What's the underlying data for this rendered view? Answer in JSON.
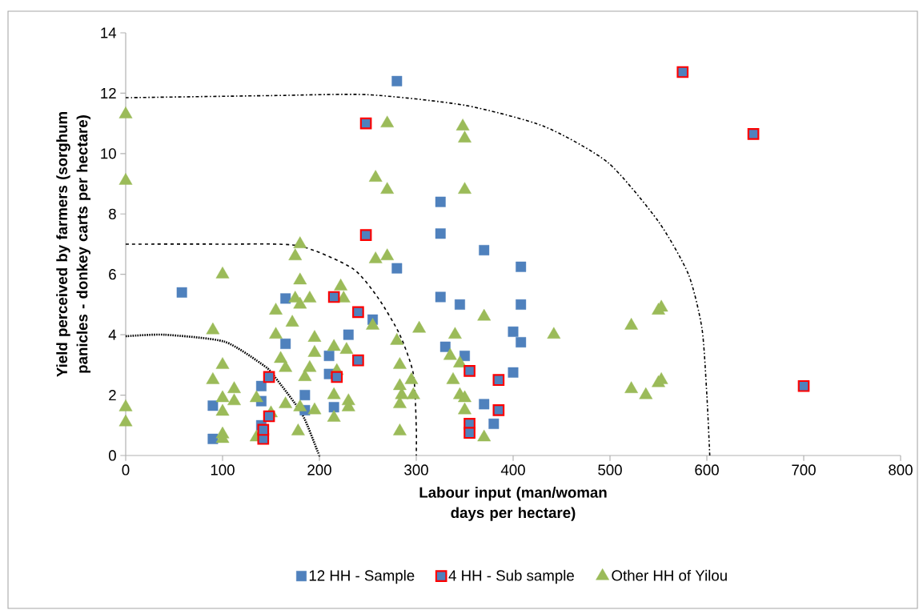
{
  "chart_data": {
    "type": "scatter",
    "xlabel": "Labour input (man/woman days per hectare)",
    "ylabel": "Yield perceived by farmers (sorghum panicles - donkey carts per hectare)",
    "xlim": [
      0,
      800
    ],
    "xticks": [
      0,
      100,
      200,
      300,
      400,
      500,
      600,
      700,
      800
    ],
    "ylim": [
      0,
      14
    ],
    "yticks": [
      0,
      2,
      4,
      6,
      8,
      10,
      12,
      14
    ],
    "grid": false,
    "legend": "bottom",
    "series": [
      {
        "name": "12 HH - Sample",
        "color": "#4f81bd",
        "marker": "square",
        "x": [
          58,
          90,
          90,
          140,
          140,
          140,
          165,
          165,
          185,
          185,
          210,
          210,
          215,
          230,
          255,
          280,
          280,
          325,
          325,
          325,
          330,
          345,
          350,
          370,
          370,
          380,
          400,
          400,
          408,
          408,
          408
        ],
        "values": [
          5.4,
          1.65,
          0.55,
          2.3,
          1.0,
          1.8,
          5.2,
          3.7,
          2.0,
          1.5,
          3.3,
          2.7,
          1.6,
          4.0,
          4.5,
          12.4,
          6.2,
          8.4,
          7.35,
          5.25,
          3.6,
          5.0,
          3.3,
          6.8,
          1.7,
          1.05,
          4.1,
          2.75,
          6.25,
          5.0,
          3.75
        ]
      },
      {
        "name": "4 HH - Sub sample",
        "color": "#ff0000",
        "marker": "square",
        "x": [
          248,
          248,
          215,
          240,
          240,
          218,
          148,
          148,
          142,
          142,
          355,
          355,
          355,
          385,
          385,
          575,
          648,
          700
        ],
        "values": [
          11.0,
          7.3,
          5.25,
          4.75,
          3.15,
          2.6,
          2.6,
          1.3,
          0.55,
          0.85,
          2.8,
          1.05,
          0.75,
          2.5,
          1.5,
          12.7,
          10.65,
          2.3
        ]
      },
      {
        "name": "Other HH of Yilou",
        "color": "#9bbb59",
        "marker": "triangle",
        "x": [
          0,
          0,
          0,
          0,
          100,
          90,
          90,
          100,
          100,
          100,
          100,
          100,
          112,
          112,
          135,
          135,
          150,
          155,
          155,
          160,
          165,
          165,
          175,
          180,
          180,
          175,
          180,
          172,
          180,
          178,
          185,
          190,
          195,
          195,
          190,
          195,
          215,
          218,
          215,
          215,
          222,
          225,
          228,
          230,
          230,
          255,
          258,
          258,
          270,
          270,
          270,
          280,
          283,
          283,
          285,
          283,
          283,
          295,
          297,
          303,
          335,
          340,
          338,
          345,
          345,
          350,
          350,
          348,
          350,
          350,
          370,
          370,
          442,
          522,
          522,
          537,
          550,
          553,
          550,
          553
        ],
        "values": [
          11.3,
          9.1,
          1.6,
          1.1,
          6.0,
          4.15,
          2.5,
          3.0,
          1.9,
          1.45,
          0.7,
          0.55,
          2.2,
          1.8,
          1.9,
          0.6,
          1.4,
          4.8,
          4.0,
          3.2,
          2.9,
          1.7,
          6.6,
          7.0,
          5.8,
          5.2,
          5.0,
          4.4,
          1.6,
          0.8,
          2.6,
          5.2,
          3.9,
          3.4,
          2.9,
          1.5,
          3.6,
          2.8,
          2.0,
          1.25,
          5.6,
          5.2,
          3.5,
          1.8,
          1.6,
          4.3,
          9.2,
          6.5,
          11.0,
          8.8,
          6.6,
          3.8,
          3.0,
          2.3,
          2.0,
          1.7,
          0.8,
          2.5,
          2.0,
          4.2,
          3.3,
          4.0,
          2.5,
          3.05,
          2.0,
          1.9,
          1.5,
          10.9,
          10.5,
          8.8,
          4.6,
          0.6,
          4.0,
          4.3,
          2.2,
          2.0,
          4.8,
          4.9,
          2.4,
          2.5
        ]
      },
      {
        "type": "line",
        "color": "#000000",
        "line_style": "dotted",
        "marker": "none",
        "x": [
          0,
          40,
          102,
          143,
          154,
          182,
          198,
          200
        ],
        "values": [
          3.95,
          4.0,
          3.77,
          2.97,
          2.6,
          1.38,
          0.15,
          0
        ]
      },
      {
        "type": "line",
        "color": "#000000",
        "line_style": "dashed",
        "marker": "none",
        "x": [
          0,
          100,
          178,
          234,
          261,
          283,
          297,
          300,
          300
        ],
        "values": [
          7.0,
          7.0,
          6.95,
          6.2,
          5.2,
          4.0,
          2.7,
          0.95,
          0
        ]
      },
      {
        "type": "line",
        "color": "#000000",
        "line_style": "dashdot",
        "marker": "none",
        "x": [
          0,
          150,
          250,
          350,
          432,
          498,
          550,
          581,
          595,
          600,
          603
        ],
        "values": [
          11.85,
          11.92,
          11.95,
          11.6,
          10.9,
          9.7,
          7.75,
          6.0,
          4.2,
          2.0,
          0
        ]
      }
    ]
  }
}
